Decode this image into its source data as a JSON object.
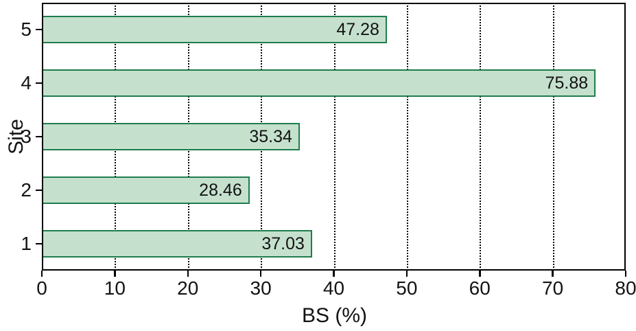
{
  "chart_data": {
    "type": "bar",
    "orientation": "horizontal",
    "title": "",
    "xlabel": "BS (%)",
    "ylabel": "Site",
    "categories": [
      "1",
      "2",
      "3",
      "4",
      "5"
    ],
    "values": [
      37.03,
      28.46,
      35.34,
      75.88,
      47.28
    ],
    "value_labels": [
      "37.03",
      "28.46",
      "35.34",
      "75.88",
      "47.28"
    ],
    "x_ticks": [
      "0",
      "10",
      "20",
      "30",
      "40",
      "50",
      "60",
      "70",
      "80"
    ],
    "xlim": [
      0,
      80
    ],
    "y_axis_order": "site 1 at bottom, site 5 at top",
    "grid": "vertical dotted lines at each x tick, behind bars",
    "legend": "none",
    "colors": {
      "bar_fill": "#c5e1ce",
      "bar_border": "#1f7c4d",
      "frame": "#000000",
      "text": "#131313"
    }
  }
}
